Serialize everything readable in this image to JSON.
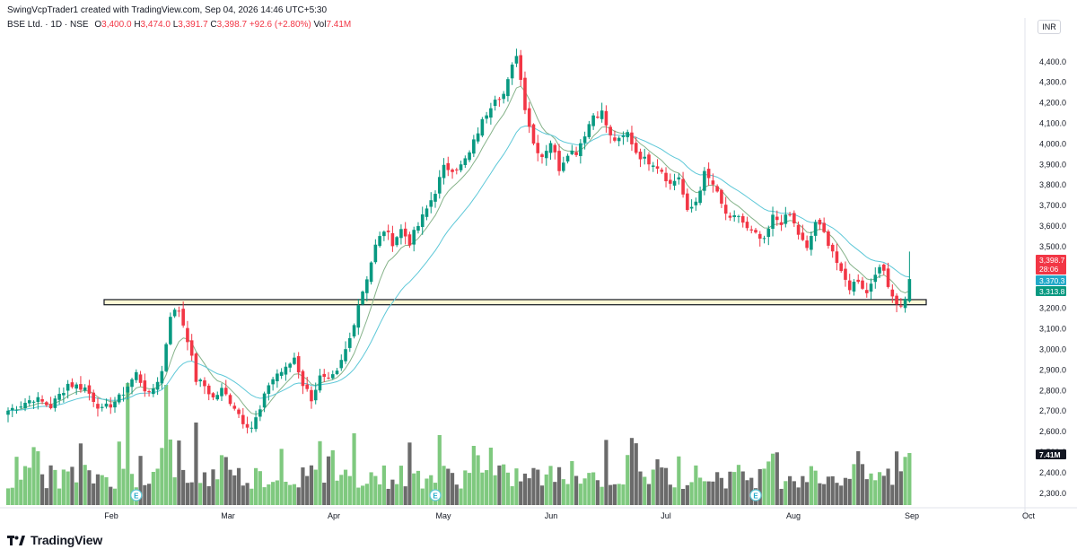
{
  "header": {
    "credit": "SwingVcpTrader1 created with TradingView.com, Sep 04, 2026 14:46 UTC+5:30",
    "symbol": "BSE Ltd. · 1D · NSE",
    "o_label": "O",
    "o_value": "3,400.0",
    "h_label": "H",
    "h_value": "3,474.0",
    "l_label": "L",
    "l_value": "3,391.7",
    "c_label": "C",
    "c_value": "3,398.7",
    "change": "+92.6 (+2.80%)",
    "vol_label": "Vol",
    "vol_value": "7.41M",
    "currency": "INR"
  },
  "footer": {
    "brand": "TradingView",
    "logo_icon": "tradingview-logo-icon"
  },
  "colors": {
    "up": "#089981",
    "down": "#f23645",
    "vol_up": "#7fc97f",
    "vol_down": "#6b6b6b",
    "ema_fast": "#86b38a",
    "ema_slow": "#5ec8d8",
    "zone_fill": "#fff9d6",
    "zone_border": "#131722"
  },
  "chart_data": {
    "type": "candlestick",
    "y_ticks": [
      "4,400.0",
      "4,300.0",
      "4,200.0",
      "4,100.0",
      "4,000.0",
      "3,900.0",
      "3,800.0",
      "3,700.0",
      "3,600.0",
      "3,500.0",
      "3,200.0",
      "3,100.0",
      "3,000.0",
      "2,900.0",
      "2,800.0",
      "2,700.0",
      "2,600.0",
      "2,500.0",
      "2,400.0",
      "2,300.0"
    ],
    "x_labels": [
      "Feb",
      "Mar",
      "Apr",
      "May",
      "Jun",
      "Jul",
      "Aug",
      "Sep",
      "Oct"
    ],
    "ylim": [
      2240,
      4480
    ],
    "price_labels": [
      {
        "text": "3,398.7",
        "sub": "28:06",
        "value": 3398.7,
        "color": "#f23645"
      },
      {
        "text": "3,370.3",
        "value": 3370.3,
        "color": "#22a9c8"
      },
      {
        "text": "3,313.8",
        "value": 3313.8,
        "color": "#089981"
      }
    ],
    "volume_label": {
      "text": "7.41M",
      "color": "#131722"
    },
    "support_zone": [
      3215,
      3240
    ],
    "earnings_markers": [
      {
        "label": "E",
        "index": 30
      },
      {
        "label": "E",
        "index": 100
      },
      {
        "label": "E",
        "index": 175
      }
    ],
    "close_points": [
      [
        0,
        2700
      ],
      [
        6,
        2760
      ],
      [
        10,
        2720
      ],
      [
        14,
        2830
      ],
      [
        18,
        2810
      ],
      [
        22,
        2700
      ],
      [
        26,
        2760
      ],
      [
        30,
        2880
      ],
      [
        33,
        2770
      ],
      [
        36,
        2890
      ],
      [
        38,
        3170
      ],
      [
        40,
        3190
      ],
      [
        42,
        3050
      ],
      [
        44,
        2850
      ],
      [
        46,
        2820
      ],
      [
        48,
        2760
      ],
      [
        50,
        2800
      ],
      [
        53,
        2720
      ],
      [
        55,
        2650
      ],
      [
        57,
        2620
      ],
      [
        59,
        2700
      ],
      [
        61,
        2830
      ],
      [
        63,
        2880
      ],
      [
        65,
        2900
      ],
      [
        67,
        2960
      ],
      [
        69,
        2830
      ],
      [
        71,
        2760
      ],
      [
        73,
        2860
      ],
      [
        75,
        2840
      ],
      [
        77,
        2880
      ],
      [
        80,
        3050
      ],
      [
        82,
        3220
      ],
      [
        84,
        3350
      ],
      [
        86,
        3500
      ],
      [
        88,
        3580
      ],
      [
        90,
        3520
      ],
      [
        92,
        3580
      ],
      [
        94,
        3520
      ],
      [
        96,
        3600
      ],
      [
        98,
        3680
      ],
      [
        100,
        3770
      ],
      [
        102,
        3880
      ],
      [
        104,
        3880
      ],
      [
        106,
        3890
      ],
      [
        108,
        3950
      ],
      [
        110,
        4060
      ],
      [
        112,
        4150
      ],
      [
        114,
        4230
      ],
      [
        116,
        4240
      ],
      [
        117,
        4300
      ],
      [
        119,
        4440
      ],
      [
        121,
        4180
      ],
      [
        123,
        4000
      ],
      [
        125,
        3940
      ],
      [
        127,
        4010
      ],
      [
        129,
        3880
      ],
      [
        131,
        3960
      ],
      [
        133,
        3960
      ],
      [
        135,
        4050
      ],
      [
        137,
        4140
      ],
      [
        139,
        4150
      ],
      [
        141,
        4030
      ],
      [
        143,
        4010
      ],
      [
        145,
        4050
      ],
      [
        147,
        3960
      ],
      [
        149,
        3920
      ],
      [
        151,
        3910
      ],
      [
        153,
        3870
      ],
      [
        155,
        3800
      ],
      [
        157,
        3840
      ],
      [
        159,
        3660
      ],
      [
        161,
        3720
      ],
      [
        163,
        3850
      ],
      [
        165,
        3800
      ],
      [
        167,
        3700
      ],
      [
        169,
        3620
      ],
      [
        171,
        3650
      ],
      [
        173,
        3580
      ],
      [
        175,
        3550
      ],
      [
        177,
        3520
      ],
      [
        179,
        3640
      ],
      [
        181,
        3620
      ],
      [
        183,
        3650
      ],
      [
        185,
        3560
      ],
      [
        187,
        3480
      ],
      [
        189,
        3620
      ],
      [
        191,
        3560
      ],
      [
        193,
        3480
      ],
      [
        195,
        3360
      ],
      [
        197,
        3300
      ],
      [
        199,
        3340
      ],
      [
        201,
        3270
      ],
      [
        203,
        3380
      ],
      [
        205,
        3380
      ],
      [
        207,
        3260
      ],
      [
        209,
        3200
      ],
      [
        211,
        3310
      ]
    ]
  }
}
